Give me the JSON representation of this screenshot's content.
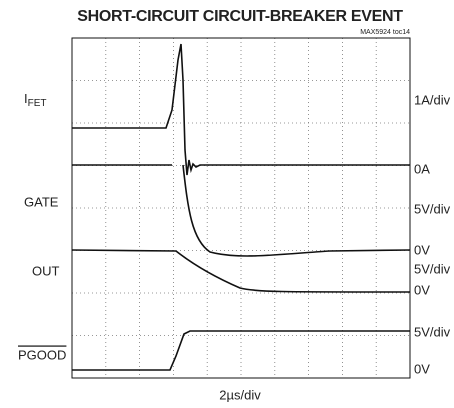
{
  "title": "SHORT-CIRCUIT CIRCUIT-BREAKER EVENT",
  "figure_id": "MAX5924 toc14",
  "left_labels": {
    "ifet": {
      "main": "I",
      "sub": "FET"
    },
    "gate": "GATE",
    "out": "OUT",
    "pgood": "PGOOD"
  },
  "right_labels": [
    "1A/div",
    "0A",
    "5V/div",
    "0V",
    "5V/div",
    "0V",
    "5V/div",
    "0V"
  ],
  "x_label": "2µs/div"
}
